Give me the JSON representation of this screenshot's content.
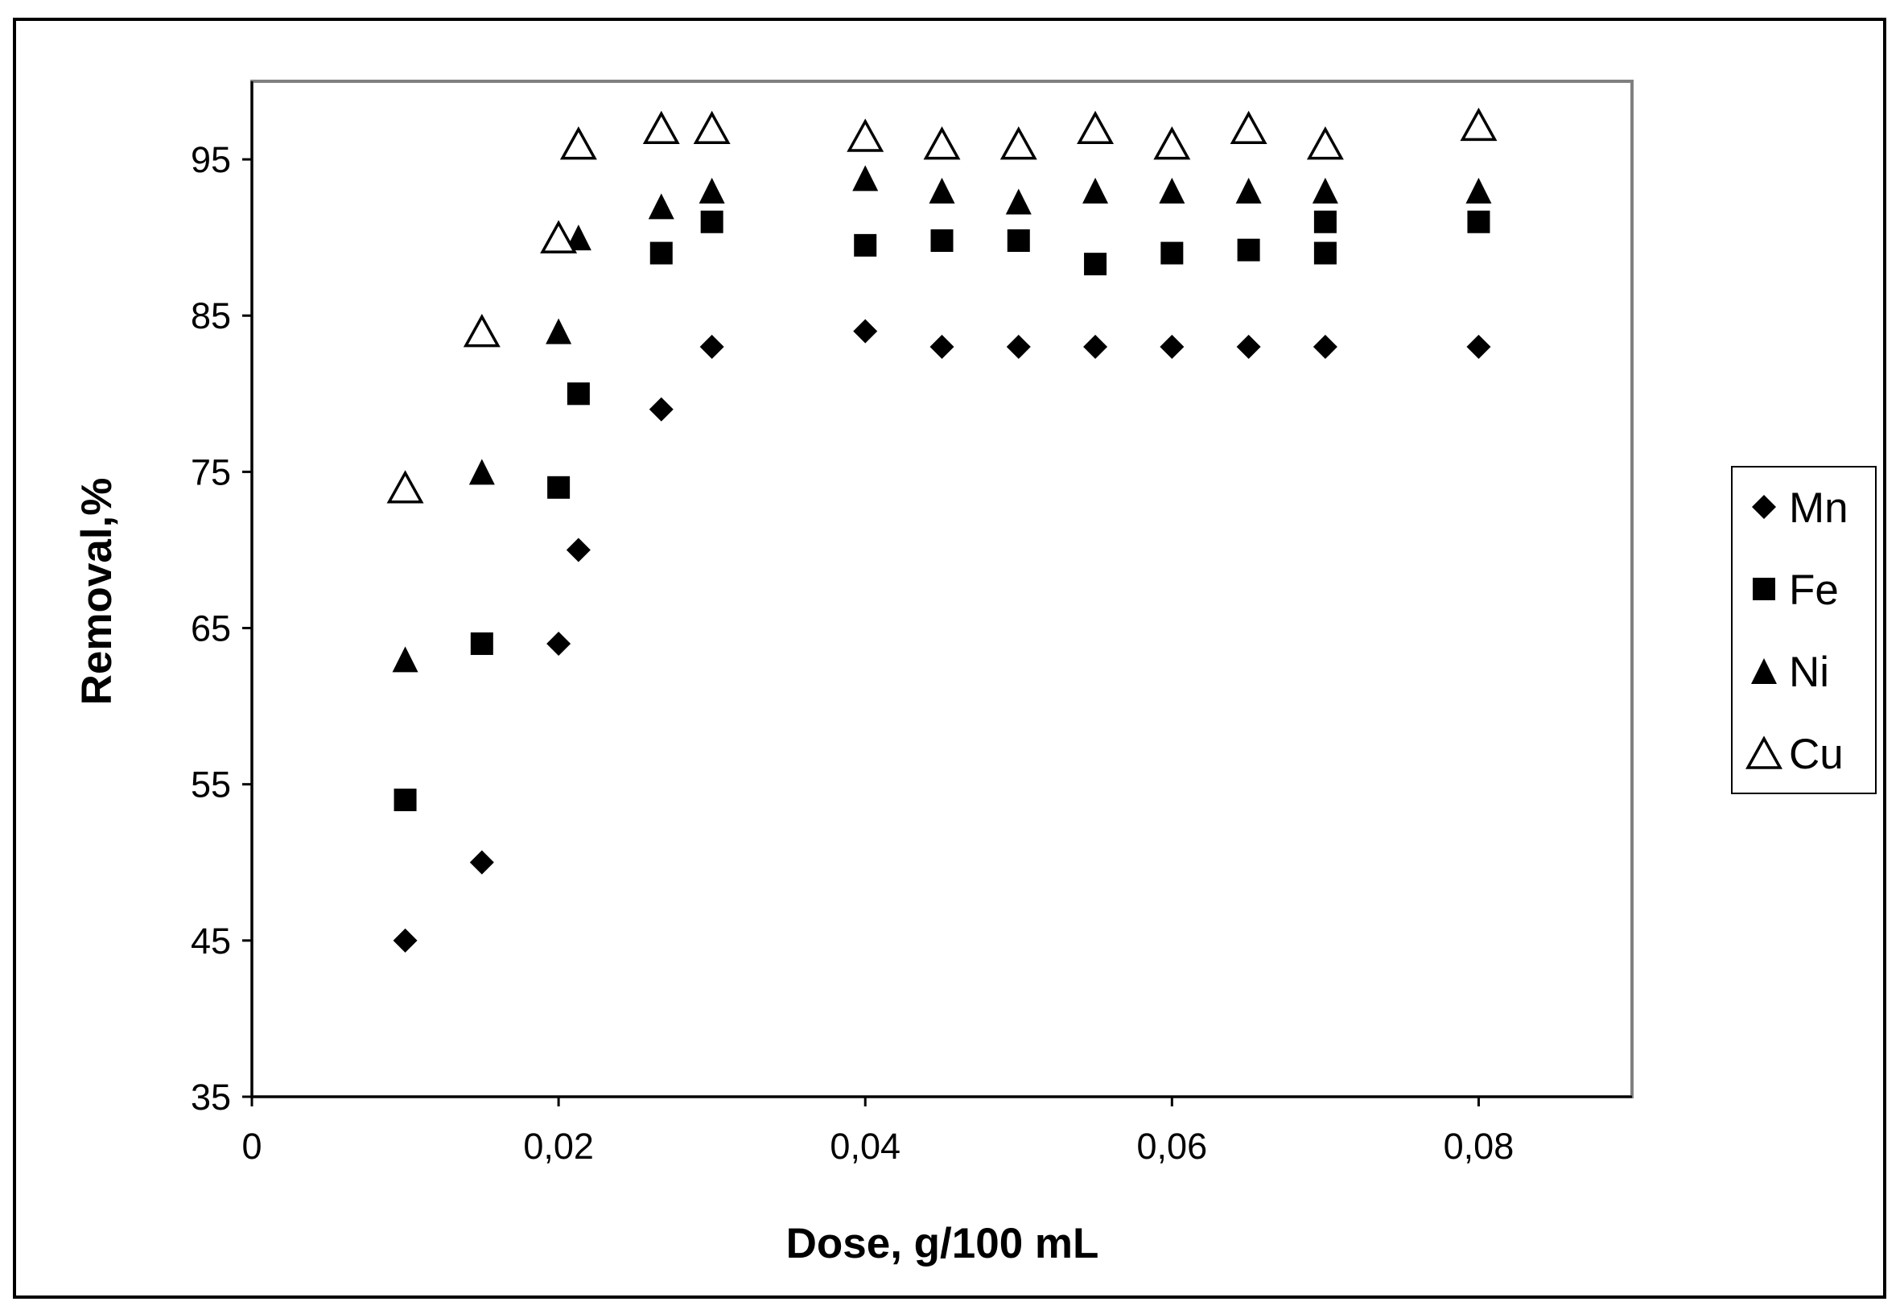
{
  "chart_data": {
    "type": "scatter",
    "title": "",
    "xlabel": "Dose, g/100 mL",
    "ylabel": "Removal,%",
    "xlim": [
      0,
      0.09
    ],
    "ylim": [
      35,
      100
    ],
    "xticks": [
      0,
      0.02,
      0.04,
      0.06,
      0.08
    ],
    "xtick_labels": [
      "0",
      "0,02",
      "0,04",
      "0,06",
      "0,08"
    ],
    "yticks": [
      35,
      45,
      55,
      65,
      75,
      85,
      95
    ],
    "ytick_labels": [
      "35",
      "45",
      "55",
      "65",
      "75",
      "85",
      "95"
    ],
    "grid": false,
    "legend_position": "right",
    "series": [
      {
        "name": "Mn",
        "marker": "diamond-filled",
        "color": "#000000",
        "x": [
          0.01,
          0.015,
          0.02,
          0.0213,
          0.0267,
          0.03,
          0.04,
          0.045,
          0.05,
          0.055,
          0.06,
          0.065,
          0.07,
          0.08
        ],
        "y": [
          45,
          50,
          64,
          70,
          79,
          83,
          84,
          83,
          83,
          83,
          83,
          83,
          83,
          83
        ]
      },
      {
        "name": "Fe",
        "marker": "square-filled",
        "color": "#000000",
        "x": [
          0.01,
          0.015,
          0.02,
          0.0213,
          0.0267,
          0.03,
          0.04,
          0.045,
          0.05,
          0.055,
          0.06,
          0.065,
          0.07,
          0.07,
          0.08
        ],
        "y": [
          54,
          64,
          74,
          80,
          89,
          91,
          89.5,
          89.8,
          89.8,
          88.3,
          89,
          89.2,
          89,
          91,
          91
        ]
      },
      {
        "name": "Ni",
        "marker": "triangle-filled",
        "color": "#000000",
        "x": [
          0.01,
          0.015,
          0.02,
          0.0213,
          0.0267,
          0.03,
          0.04,
          0.045,
          0.05,
          0.055,
          0.06,
          0.065,
          0.07,
          0.08
        ],
        "y": [
          63,
          75,
          84,
          90,
          92,
          93,
          93.8,
          93,
          92.3,
          93,
          93,
          93,
          93,
          93
        ]
      },
      {
        "name": "Cu",
        "marker": "triangle-open",
        "color": "#000000",
        "x": [
          0.01,
          0.015,
          0.02,
          0.0213,
          0.0267,
          0.03,
          0.04,
          0.045,
          0.05,
          0.055,
          0.06,
          0.065,
          0.07,
          0.08
        ],
        "y": [
          74,
          84,
          90,
          96,
          97,
          97,
          96.5,
          96,
          96,
          97,
          96,
          97,
          96,
          97.2
        ]
      }
    ]
  }
}
